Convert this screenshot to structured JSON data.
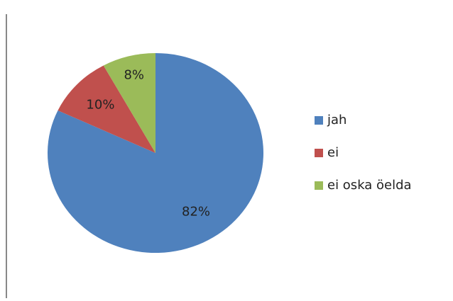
{
  "chart_data": {
    "type": "pie",
    "categories": [
      "jah",
      "ei",
      "ei oska öelda"
    ],
    "values": [
      82,
      10,
      8
    ],
    "value_labels": [
      "82%",
      "10%",
      "8%"
    ],
    "colors": [
      "#4f81bd",
      "#c0504d",
      "#9bbb59"
    ],
    "legend": "right"
  }
}
